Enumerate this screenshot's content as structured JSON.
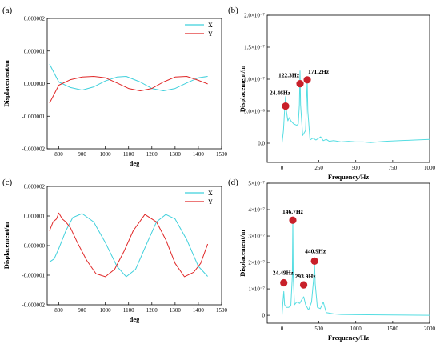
{
  "colors": {
    "x_series": "#3fd0dc",
    "y_series": "#e02828",
    "marker": "#c8202a",
    "fft": "#55dde2"
  },
  "chart_data": [
    {
      "panel": "(a)",
      "type": "line",
      "xlabel": "deg",
      "ylabel": "Displacement/m",
      "xlim": [
        750,
        1500
      ],
      "ylim": [
        -2e-06,
        2e-06
      ],
      "xticks": [
        "800",
        "900",
        "1000",
        "1100",
        "1200",
        "1300",
        "1400",
        "1500"
      ],
      "yticks": [
        "-0.000002",
        "-0.000001",
        "0.000000",
        "0.000001",
        "0.000002"
      ],
      "legend_position": "top-right",
      "series": [
        {
          "name": "X",
          "color": "#3fd0dc",
          "x": [
            760,
            800,
            850,
            900,
            950,
            1000,
            1050,
            1090,
            1150,
            1200,
            1250,
            1300,
            1350,
            1400,
            1440
          ],
          "y": [
            6e-07,
            5e-08,
            -1.2e-07,
            -2e-07,
            -1e-07,
            8e-08,
            2e-07,
            2.2e-07,
            5e-08,
            -1.5e-07,
            -2.2e-07,
            -1.5e-07,
            2e-08,
            1.8e-07,
            2.2e-07
          ]
        },
        {
          "name": "Y",
          "color": "#e02828",
          "x": [
            760,
            800,
            850,
            900,
            950,
            1000,
            1050,
            1100,
            1150,
            1200,
            1250,
            1300,
            1350,
            1400,
            1440
          ],
          "y": [
            -6e-07,
            -5e-08,
            1.2e-07,
            2e-07,
            2.2e-07,
            1.8e-07,
            2e-08,
            -1.5e-07,
            -2.2e-07,
            -1.5e-07,
            5e-08,
            2e-07,
            2.2e-07,
            1e-07,
            -1e-08
          ]
        }
      ]
    },
    {
      "panel": "(b)",
      "type": "line",
      "xlabel": "Frequency/Hz",
      "ylabel": "Displacement/m",
      "xlim": [
        -100,
        1000
      ],
      "ylim": [
        -3e-08,
        2e-07
      ],
      "xticks": [
        "0",
        "250",
        "500",
        "750",
        "1000"
      ],
      "yticks": [
        "0.0",
        "5.0×10⁻⁸",
        "1.0×10⁻⁷",
        "1.5×10⁻⁷",
        "2.0×10⁻⁷"
      ],
      "x": [
        0,
        10,
        20,
        24.46,
        30,
        40,
        50,
        60,
        80,
        100,
        110,
        118,
        122.3,
        126,
        140,
        160,
        168,
        171.2,
        175,
        190,
        210,
        230,
        250,
        262,
        280,
        300,
        320,
        350,
        400,
        450,
        500,
        550,
        600,
        650,
        700,
        800,
        900,
        1000
      ],
      "values": [
        0.0,
        2e-08,
        6e-08,
        7.3e-08,
        5e-08,
        3.5e-08,
        4e-08,
        3.5e-08,
        3e-08,
        2.8e-08,
        3e-08,
        6e-08,
        1.13e-07,
        6e-08,
        1.2e-08,
        2e-08,
        8e-08,
        9.7e-08,
        5e-08,
        5e-09,
        8e-09,
        5e-09,
        8e-09,
        1e-08,
        4e-09,
        6e-09,
        3e-09,
        4e-09,
        2e-09,
        3e-09,
        2e-09,
        2e-09,
        1e-09,
        2e-09,
        3e-09,
        4e-09,
        5e-09,
        6e-09
      ],
      "annotations": [
        {
          "label": "24.46Hz",
          "x": 24.46,
          "y": 5.8e-08
        },
        {
          "label": "122.3Hz",
          "x": 122.3,
          "y": 9.3e-08
        },
        {
          "label": "171.2Hz",
          "x": 171.2,
          "y": 9.9e-08
        }
      ]
    },
    {
      "panel": "(c)",
      "type": "line",
      "xlabel": "deg",
      "ylabel": "Displacement/m",
      "xlim": [
        750,
        1500
      ],
      "ylim": [
        -2e-06,
        2e-06
      ],
      "xticks": [
        "800",
        "900",
        "1000",
        "1100",
        "1200",
        "1300",
        "1400",
        "1500"
      ],
      "yticks": [
        "-0.000002",
        "-0.000001",
        "0.000000",
        "0.000001",
        "0.000002"
      ],
      "legend_position": "top-right",
      "series": [
        {
          "name": "X",
          "color": "#3fd0dc",
          "x": [
            760,
            780,
            800,
            830,
            860,
            900,
            950,
            1000,
            1050,
            1090,
            1130,
            1180,
            1220,
            1260,
            1300,
            1350,
            1400,
            1440
          ],
          "y": [
            -5.5e-07,
            -4.5e-07,
            -1e-07,
            5e-07,
            9.5e-07,
            1.08e-06,
            8e-07,
            1e-07,
            -7e-07,
            -1.05e-06,
            -8e-07,
            1e-07,
            8e-07,
            1.05e-06,
            9e-07,
            2e-07,
            -7e-07,
            -1.04e-06
          ]
        },
        {
          "name": "Y",
          "color": "#e02828",
          "x": [
            760,
            775,
            790,
            800,
            815,
            830,
            850,
            880,
            920,
            960,
            1000,
            1040,
            1080,
            1120,
            1170,
            1220,
            1260,
            1300,
            1340,
            1380,
            1410,
            1440
          ],
          "y": [
            5e-07,
            8e-07,
            9e-07,
            1.1e-06,
            9e-07,
            8e-07,
            6e-07,
            1e-07,
            -5e-07,
            -9.5e-07,
            -1.05e-06,
            -8e-07,
            -2e-07,
            5e-07,
            1.05e-06,
            8e-07,
            2e-07,
            -6e-07,
            -1.05e-06,
            -9e-07,
            -6e-07,
            5e-08
          ]
        }
      ]
    },
    {
      "panel": "(d)",
      "type": "line",
      "xlabel": "Frequency/Hz",
      "ylabel": "Displacement/m",
      "xlim": [
        -200,
        2000
      ],
      "ylim": [
        -3e-08,
        5e-07
      ],
      "xticks": [
        "0",
        "500",
        "1000",
        "1500",
        "2000"
      ],
      "yticks": [
        "0",
        "1×10⁻⁷",
        "2×10⁻⁷",
        "3×10⁻⁷",
        "4×10⁻⁷",
        "5×10⁻⁷"
      ],
      "x": [
        0,
        12,
        24.49,
        35,
        60,
        90,
        120,
        140,
        146.7,
        152,
        170,
        200,
        240,
        270,
        293.9,
        320,
        360,
        400,
        430,
        440.9,
        450,
        480,
        520,
        560,
        600,
        700,
        800,
        1000,
        1500,
        2000
      ],
      "values": [
        0.0,
        5e-08,
        9e-08,
        4e-08,
        3e-08,
        3e-08,
        3.5e-08,
        1.5e-07,
        3.6e-07,
        1.5e-07,
        4e-08,
        5e-08,
        4.5e-08,
        6e-08,
        7e-08,
        4e-08,
        2e-08,
        5e-08,
        1.4e-07,
        2e-07,
        1.2e-07,
        3e-08,
        2.5e-08,
        5e-08,
        1e-08,
        5e-09,
        3e-09,
        2e-09,
        1e-09,
        0.0
      ],
      "annotations": [
        {
          "label": "24.49Hz",
          "x": 24.49,
          "y": 1.23e-07
        },
        {
          "label": "146.7Hz",
          "x": 146.7,
          "y": 3.6e-07
        },
        {
          "label": "293.9Hz",
          "x": 293.9,
          "y": 1.15e-07
        },
        {
          "label": "440.9Hz",
          "x": 440.9,
          "y": 2.05e-07
        }
      ]
    }
  ]
}
